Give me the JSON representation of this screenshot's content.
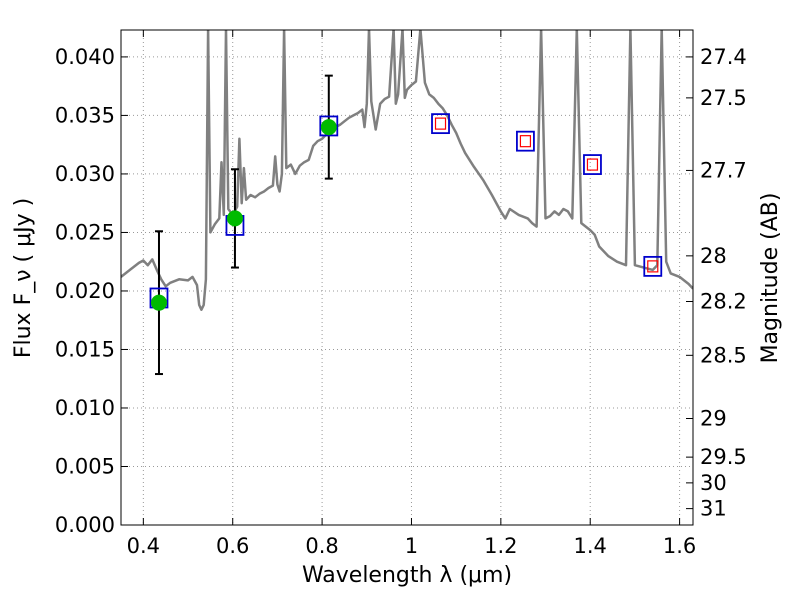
{
  "chart_data": {
    "type": "scatter",
    "title": "",
    "xlabel": "Wavelength  λ (μm)",
    "ylabel": "Flux  F_ν  ( μJy )",
    "ylabel_right": "Magnitude (AB)",
    "xlim": [
      0.35,
      1.63
    ],
    "ylim": [
      0.0,
      0.0423
    ],
    "grid": true,
    "x_ticks": [
      0.4,
      0.6,
      0.8,
      1.0,
      1.2,
      1.4,
      1.6
    ],
    "x_tick_labels": [
      "0.4",
      "0.6",
      "0.8",
      "1",
      "1.2",
      "1.4",
      "1.6"
    ],
    "y_ticks": [
      0.0,
      0.005,
      0.01,
      0.015,
      0.02,
      0.025,
      0.03,
      0.035,
      0.04
    ],
    "y_tick_labels": [
      "0.000",
      "0.005",
      "0.010",
      "0.015",
      "0.020",
      "0.025",
      "0.030",
      "0.035",
      "0.040"
    ],
    "right_ticks": [
      {
        "label": "27.4",
        "flux": 0.04
      },
      {
        "label": "27.5",
        "flux": 0.0365
      },
      {
        "label": "27.7",
        "flux": 0.0303
      },
      {
        "label": "28",
        "flux": 0.023
      },
      {
        "label": "28.2",
        "flux": 0.0191
      },
      {
        "label": "28.5",
        "flux": 0.0145
      },
      {
        "label": "29",
        "flux": 0.0091
      },
      {
        "label": "29.5",
        "flux": 0.0058
      },
      {
        "label": "30",
        "flux": 0.0036
      },
      {
        "label": "31",
        "flux": 0.0014
      }
    ],
    "colors": {
      "sed": "#808080",
      "observed": "#00bb00",
      "model_box": "#0000cc",
      "model_inner": "#ff0000",
      "errorbar": "#000000",
      "grid": "#999999"
    },
    "series": [
      {
        "kind": "line",
        "points": [
          [
            0.35,
            0.0212
          ],
          [
            0.37,
            0.0218
          ],
          [
            0.39,
            0.0224
          ],
          [
            0.4,
            0.0226
          ],
          [
            0.41,
            0.0222
          ],
          [
            0.42,
            0.0227
          ],
          [
            0.43,
            0.0218
          ],
          [
            0.44,
            0.021
          ],
          [
            0.45,
            0.0204
          ],
          [
            0.46,
            0.0207
          ],
          [
            0.48,
            0.021
          ],
          [
            0.5,
            0.0209
          ],
          [
            0.51,
            0.0212
          ],
          [
            0.52,
            0.0205
          ],
          [
            0.525,
            0.0188
          ],
          [
            0.53,
            0.0184
          ],
          [
            0.535,
            0.0188
          ],
          [
            0.54,
            0.021
          ],
          [
            0.545,
            0.0424
          ],
          [
            0.55,
            0.025
          ],
          [
            0.56,
            0.0257
          ],
          [
            0.57,
            0.0262
          ],
          [
            0.575,
            0.031
          ],
          [
            0.58,
            0.0265
          ],
          [
            0.585,
            0.0424
          ],
          [
            0.59,
            0.027
          ],
          [
            0.6,
            0.0265
          ],
          [
            0.61,
            0.0272
          ],
          [
            0.615,
            0.033
          ],
          [
            0.62,
            0.0275
          ],
          [
            0.625,
            0.0305
          ],
          [
            0.63,
            0.0278
          ],
          [
            0.64,
            0.0282
          ],
          [
            0.65,
            0.028
          ],
          [
            0.66,
            0.0283
          ],
          [
            0.67,
            0.0285
          ],
          [
            0.68,
            0.0288
          ],
          [
            0.69,
            0.029
          ],
          [
            0.695,
            0.0315
          ],
          [
            0.7,
            0.0291
          ],
          [
            0.705,
            0.0285
          ],
          [
            0.71,
            0.03
          ],
          [
            0.715,
            0.0424
          ],
          [
            0.72,
            0.0305
          ],
          [
            0.73,
            0.0308
          ],
          [
            0.74,
            0.03
          ],
          [
            0.75,
            0.0307
          ],
          [
            0.76,
            0.031
          ],
          [
            0.77,
            0.0312
          ],
          [
            0.78,
            0.0324
          ],
          [
            0.79,
            0.0328
          ],
          [
            0.8,
            0.033
          ],
          [
            0.81,
            0.0334
          ],
          [
            0.815,
            0.0338
          ],
          [
            0.82,
            0.0334
          ],
          [
            0.83,
            0.034
          ],
          [
            0.84,
            0.0342
          ],
          [
            0.85,
            0.0345
          ],
          [
            0.86,
            0.0348
          ],
          [
            0.87,
            0.035
          ],
          [
            0.88,
            0.0352
          ],
          [
            0.89,
            0.0355
          ],
          [
            0.895,
            0.034
          ],
          [
            0.9,
            0.036
          ],
          [
            0.905,
            0.0424
          ],
          [
            0.91,
            0.0362
          ],
          [
            0.92,
            0.0338
          ],
          [
            0.93,
            0.036
          ],
          [
            0.94,
            0.0364
          ],
          [
            0.95,
            0.0366
          ],
          [
            0.96,
            0.0424
          ],
          [
            0.965,
            0.036
          ],
          [
            0.97,
            0.0368
          ],
          [
            0.98,
            0.0424
          ],
          [
            0.985,
            0.0365
          ],
          [
            0.99,
            0.0372
          ],
          [
            1.0,
            0.0376
          ],
          [
            1.01,
            0.0379
          ],
          [
            1.02,
            0.0424
          ],
          [
            1.03,
            0.0378
          ],
          [
            1.04,
            0.0368
          ],
          [
            1.05,
            0.0365
          ],
          [
            1.06,
            0.036
          ],
          [
            1.07,
            0.0356
          ],
          [
            1.08,
            0.035
          ],
          [
            1.09,
            0.0342
          ],
          [
            1.1,
            0.0335
          ],
          [
            1.11,
            0.0326
          ],
          [
            1.12,
            0.0318
          ],
          [
            1.14,
            0.0306
          ],
          [
            1.16,
            0.0295
          ],
          [
            1.18,
            0.0282
          ],
          [
            1.2,
            0.0268
          ],
          [
            1.21,
            0.0262
          ],
          [
            1.22,
            0.027
          ],
          [
            1.24,
            0.0265
          ],
          [
            1.26,
            0.0262
          ],
          [
            1.27,
            0.0258
          ],
          [
            1.28,
            0.0255
          ],
          [
            1.29,
            0.0424
          ],
          [
            1.3,
            0.0262
          ],
          [
            1.31,
            0.0264
          ],
          [
            1.32,
            0.0268
          ],
          [
            1.33,
            0.0265
          ],
          [
            1.34,
            0.027
          ],
          [
            1.35,
            0.0268
          ],
          [
            1.36,
            0.0262
          ],
          [
            1.37,
            0.0424
          ],
          [
            1.38,
            0.0258
          ],
          [
            1.4,
            0.0252
          ],
          [
            1.41,
            0.0248
          ],
          [
            1.42,
            0.0238
          ],
          [
            1.44,
            0.023
          ],
          [
            1.46,
            0.0225
          ],
          [
            1.48,
            0.0222
          ],
          [
            1.49,
            0.0424
          ],
          [
            1.5,
            0.0222
          ],
          [
            1.52,
            0.022
          ],
          [
            1.54,
            0.0218
          ],
          [
            1.55,
            0.0222
          ],
          [
            1.56,
            0.0424
          ],
          [
            1.57,
            0.0225
          ],
          [
            1.58,
            0.0215
          ],
          [
            1.6,
            0.0212
          ],
          [
            1.62,
            0.0206
          ],
          [
            1.63,
            0.0202
          ]
        ]
      },
      {
        "kind": "observed",
        "x": [
          0.435,
          0.605,
          0.815
        ],
        "y": [
          0.019,
          0.0262,
          0.034
        ],
        "yerr_low": [
          0.0129,
          0.022,
          0.0296
        ],
        "yerr_high": [
          0.0251,
          0.0304,
          0.0384
        ]
      },
      {
        "kind": "model",
        "x": [
          0.435,
          0.605,
          0.815,
          1.065,
          1.255,
          1.405,
          1.54
        ],
        "y": [
          0.0194,
          0.0256,
          0.0341,
          0.0343,
          0.0328,
          0.0308,
          0.0221
        ],
        "inner": [
          false,
          false,
          false,
          true,
          true,
          true,
          true
        ]
      }
    ]
  }
}
